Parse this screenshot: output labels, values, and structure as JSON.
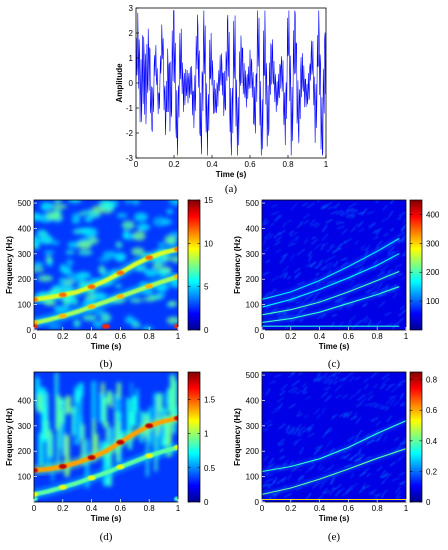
{
  "chart_data": [
    {
      "id": "a",
      "type": "line",
      "caption": "(a)",
      "xlabel": "Time (s)",
      "ylabel": "Amplitude",
      "xlim": [
        0,
        1
      ],
      "ylim": [
        -3,
        3
      ],
      "xticks": [
        0,
        0.2,
        0.4,
        0.6,
        0.8,
        1
      ],
      "yticks": [
        -3,
        -2,
        -1,
        0,
        1,
        2,
        3
      ],
      "xtick_labels": [
        "0",
        "0.2",
        "0.4",
        "0.6",
        "0.8",
        "1"
      ],
      "ytick_labels": [
        "-3",
        "-2",
        "-1",
        "0",
        "1",
        "2",
        "3"
      ],
      "line_color": "#0000ff",
      "series": [
        {
          "values_note_free": true,
          "x": [
            0,
            0.02,
            0.04,
            0.06,
            0.08,
            0.1,
            0.12,
            0.14,
            0.16,
            0.18,
            0.2,
            0.22,
            0.24,
            0.26,
            0.28,
            0.3,
            0.32,
            0.34,
            0.36,
            0.38,
            0.4,
            0.42,
            0.44,
            0.46,
            0.48,
            0.5,
            0.52,
            0.54,
            0.56,
            0.58,
            0.6,
            0.62,
            0.64,
            0.66,
            0.68,
            0.7,
            0.72,
            0.74,
            0.76,
            0.78,
            0.8,
            0.82,
            0.84,
            0.86,
            0.88,
            0.9,
            0.92,
            0.94,
            0.96,
            0.98,
            1
          ],
          "y": [
            0.3,
            1.9,
            -1.2,
            2.4,
            -2.0,
            1.1,
            -0.8,
            2.6,
            -2.3,
            0.5,
            1.8,
            -2.6,
            2.2,
            -1.4,
            0.9,
            -2.1,
            2.5,
            -1.8,
            1.3,
            -2.4,
            2.1,
            -2.7,
            1.6,
            -1.1,
            2.4,
            -2.2,
            0.8,
            -2.5,
            2.6,
            -1.6,
            1.9,
            -2.3,
            2.3,
            -2.8,
            1.4,
            -1.9,
            2.5,
            -2.1,
            1.7,
            -2.4,
            2.2,
            -1.3,
            2.6,
            -2.6,
            1.5,
            -2.0,
            2.4,
            -1.7,
            1.9,
            -2.2,
            0.6
          ]
        }
      ]
    },
    {
      "id": "b",
      "type": "heatmap",
      "caption": "(b)",
      "xlabel": "Time (s)",
      "ylabel": "Frequency (Hz)",
      "xlim": [
        0,
        1
      ],
      "ylim": [
        0,
        512
      ],
      "xticks": [
        0,
        0.2,
        0.4,
        0.6,
        0.8,
        1
      ],
      "yticks": [
        0,
        100,
        200,
        300,
        400,
        500
      ],
      "xtick_labels": [
        "0",
        "0.2",
        "0.4",
        "0.6",
        "0.8",
        "1"
      ],
      "ytick_labels": [
        "0",
        "100",
        "200",
        "300",
        "400",
        "500"
      ],
      "colorbar": {
        "min": 0,
        "max": 15,
        "ticks": [
          0,
          5,
          10,
          15
        ],
        "labels": [
          "0",
          "5",
          "10",
          "15"
        ]
      },
      "ridges": [
        {
          "points": [
            [
              0,
              120
            ],
            [
              0.1,
              128
            ],
            [
              0.2,
              138
            ],
            [
              0.3,
              150
            ],
            [
              0.4,
              170
            ],
            [
              0.5,
              195
            ],
            [
              0.6,
              225
            ],
            [
              0.7,
              258
            ],
            [
              0.8,
              285
            ],
            [
              0.9,
              305
            ],
            [
              1,
              318
            ]
          ],
          "intensity": 11
        },
        {
          "points": [
            [
              0,
              28
            ],
            [
              0.1,
              40
            ],
            [
              0.2,
              55
            ],
            [
              0.3,
              72
            ],
            [
              0.4,
              92
            ],
            [
              0.5,
              112
            ],
            [
              0.6,
              132
            ],
            [
              0.7,
              152
            ],
            [
              0.8,
              172
            ],
            [
              0.9,
              192
            ],
            [
              1,
              210
            ]
          ],
          "intensity": 10
        },
        {
          "points": [
            [
              0,
              14
            ],
            [
              0.25,
              14
            ],
            [
              0.5,
              14
            ],
            [
              0.75,
              14
            ],
            [
              1,
              14
            ]
          ],
          "intensity": 12
        }
      ]
    },
    {
      "id": "c",
      "type": "heatmap",
      "caption": "(c)",
      "xlabel": "Time (s)",
      "ylabel": "Frequency (Hz)",
      "xlim": [
        0,
        1
      ],
      "ylim": [
        0,
        512
      ],
      "xticks": [
        0,
        0.2,
        0.4,
        0.6,
        0.8,
        1
      ],
      "yticks": [
        0,
        100,
        200,
        300,
        400,
        500
      ],
      "xtick_labels": [
        "0",
        "0.2",
        "0.4",
        "0.6",
        "0.8",
        "1"
      ],
      "ytick_labels": [
        "0",
        "100",
        "200",
        "300",
        "400",
        "500"
      ],
      "colorbar": {
        "min": 0,
        "max": 450,
        "ticks": [
          100,
          200,
          300,
          400
        ],
        "labels": [
          "100",
          "200",
          "300",
          "400"
        ]
      },
      "ridges": [
        {
          "points": [
            [
              0,
              60
            ],
            [
              0.2,
              80
            ],
            [
              0.4,
              110
            ],
            [
              0.6,
              150
            ],
            [
              0.8,
              195
            ],
            [
              0.95,
              230
            ]
          ],
          "intensity": 250
        },
        {
          "points": [
            [
              0,
              30
            ],
            [
              0.2,
              45
            ],
            [
              0.4,
              70
            ],
            [
              0.6,
              105
            ],
            [
              0.8,
              140
            ],
            [
              0.95,
              170
            ]
          ],
          "intensity": 240
        },
        {
          "points": [
            [
              0,
              120
            ],
            [
              0.2,
              150
            ],
            [
              0.4,
              195
            ],
            [
              0.6,
              250
            ],
            [
              0.8,
              310
            ],
            [
              0.95,
              360
            ]
          ],
          "intensity": 200
        },
        {
          "points": [
            [
              0,
              90
            ],
            [
              0.2,
              120
            ],
            [
              0.4,
              160
            ],
            [
              0.6,
              205
            ],
            [
              0.8,
              255
            ],
            [
              0.95,
              300
            ]
          ],
          "intensity": 210
        },
        {
          "points": [
            [
              0,
              15
            ],
            [
              0.5,
              15
            ],
            [
              0.95,
              15
            ]
          ],
          "intensity": 230
        }
      ]
    },
    {
      "id": "d",
      "type": "heatmap",
      "caption": "(d)",
      "xlabel": "Time (s)",
      "ylabel": "Frequency (Hz)",
      "xlim": [
        0,
        1
      ],
      "ylim": [
        0,
        512
      ],
      "xticks": [
        0,
        0.2,
        0.4,
        0.6,
        0.8,
        1
      ],
      "yticks": [
        100,
        200,
        300,
        400
      ],
      "xtick_labels": [
        "0",
        "0.2",
        "0.4",
        "0.6",
        "0.8",
        "1"
      ],
      "ytick_labels": [
        "100",
        "200",
        "300",
        "400"
      ],
      "colorbar": {
        "min": 0,
        "max": 1.9,
        "ticks": [
          0,
          0.5,
          1,
          1.5
        ],
        "labels": [
          "0",
          "0.5",
          "1",
          "1.5"
        ]
      },
      "ridges": [
        {
          "points": [
            [
              0,
              125
            ],
            [
              0.1,
              130
            ],
            [
              0.2,
              140
            ],
            [
              0.3,
              155
            ],
            [
              0.4,
              175
            ],
            [
              0.5,
              200
            ],
            [
              0.6,
              235
            ],
            [
              0.7,
              270
            ],
            [
              0.8,
              300
            ],
            [
              0.9,
              318
            ],
            [
              1,
              330
            ]
          ],
          "intensity": 1.7
        },
        {
          "points": [
            [
              0,
              30
            ],
            [
              0.1,
              42
            ],
            [
              0.2,
              58
            ],
            [
              0.3,
              75
            ],
            [
              0.4,
              95
            ],
            [
              0.5,
              115
            ],
            [
              0.6,
              138
            ],
            [
              0.7,
              160
            ],
            [
              0.8,
              182
            ],
            [
              0.9,
              200
            ],
            [
              1,
              215
            ]
          ],
          "intensity": 1.1
        },
        {
          "points": [
            [
              0,
              12
            ],
            [
              0.5,
              12
            ],
            [
              1,
              12
            ]
          ],
          "intensity": 0.8
        }
      ]
    },
    {
      "id": "e",
      "type": "heatmap",
      "caption": "(e)",
      "xlabel": "Time (s)",
      "ylabel": "Frequency (Hz)",
      "xlim": [
        0,
        1
      ],
      "ylim": [
        0,
        512
      ],
      "xticks": [
        0,
        0.2,
        0.4,
        0.6,
        0.8,
        1
      ],
      "yticks": [
        0,
        100,
        200,
        300,
        400,
        500
      ],
      "xtick_labels": [
        "0",
        "0.2",
        "0.4",
        "0.6",
        "0.8",
        "1"
      ],
      "ytick_labels": [
        "0",
        "100",
        "200",
        "300",
        "400",
        "500"
      ],
      "colorbar": {
        "min": 0,
        "max": 0.85,
        "ticks": [
          0,
          0.2,
          0.4,
          0.6,
          0.8
        ],
        "labels": [
          "0",
          "0.2",
          "0.4",
          "0.6",
          "0.8"
        ]
      },
      "ridges": [
        {
          "points": [
            [
              0,
              120
            ],
            [
              0.2,
              140
            ],
            [
              0.4,
              170
            ],
            [
              0.6,
              215
            ],
            [
              0.8,
              270
            ],
            [
              1,
              320
            ]
          ],
          "intensity": 0.45
        },
        {
          "points": [
            [
              0,
              30
            ],
            [
              0.2,
              55
            ],
            [
              0.4,
              90
            ],
            [
              0.6,
              130
            ],
            [
              0.8,
              172
            ],
            [
              1,
              210
            ]
          ],
          "intensity": 0.5
        },
        {
          "points": [
            [
              0,
              10
            ],
            [
              0.5,
              10
            ],
            [
              1,
              10
            ]
          ],
          "intensity": 0.7
        }
      ]
    }
  ]
}
